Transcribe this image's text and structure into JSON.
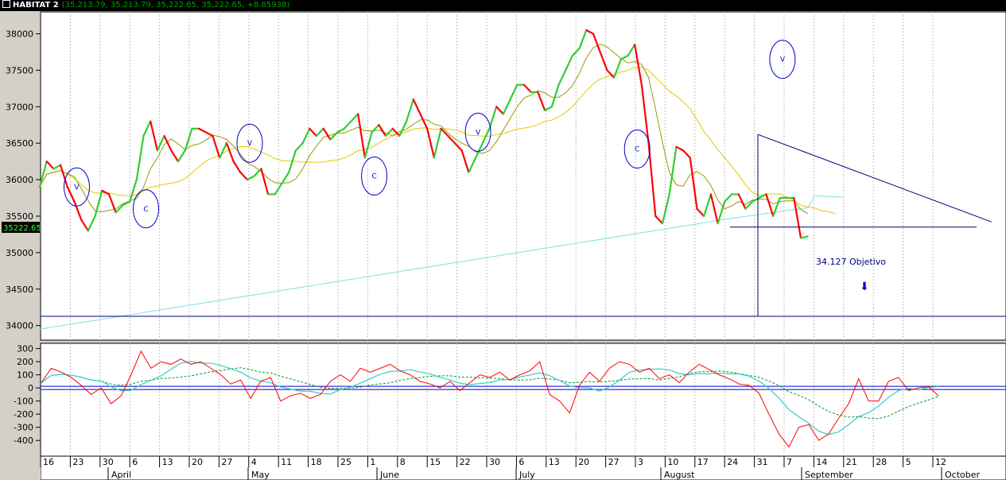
{
  "window": {
    "title": "HABITAT 2",
    "values": "(35,213.79, 35,213.79, 35,222.65, 35,222.65, +8.85938)"
  },
  "price_badge": "35222.65",
  "annotation": {
    "target": "34.127 Objetivo",
    "arrow": "⬇"
  },
  "colors": {
    "up": "#33cc33",
    "down": "#ff0000",
    "ma_short": "#999900",
    "ma_mid": "#e6c800",
    "ma_long": "#80e0e0",
    "trendline": "#000080",
    "osc_line": "#ff0000",
    "osc_signal": "#33cccc",
    "osc_dash": "#009933"
  },
  "axis": {
    "price_ticks": [
      "38000",
      "37500",
      "37000",
      "36500",
      "36000",
      "35500",
      "35000",
      "34500",
      "34000"
    ],
    "osc_ticks": [
      "300",
      "200",
      "100",
      "0",
      "-100",
      "-200",
      "-300",
      "-400"
    ],
    "day_ticks": [
      "16",
      "23",
      "30",
      "6",
      "13",
      "20",
      "27",
      "4",
      "11",
      "18",
      "25",
      "1",
      "8",
      "15",
      "22",
      "30",
      "6",
      "13",
      "20",
      "27",
      "3",
      "10",
      "17",
      "24",
      "31",
      "7",
      "14",
      "21",
      "28",
      "5",
      "12"
    ],
    "month_labels": [
      "April",
      "May",
      "June",
      "July",
      "August",
      "September",
      "October"
    ]
  },
  "chart_data": [
    {
      "type": "line",
      "panel": "price",
      "title": "HABITAT 2",
      "ylim": [
        33800,
        38300
      ],
      "x_index_range": [
        0,
        135
      ],
      "series": [
        {
          "role": "price",
          "values": [
            35900,
            36250,
            36150,
            36200,
            35900,
            35700,
            35450,
            35300,
            35500,
            35850,
            35800,
            35550,
            35650,
            35700,
            36000,
            36600,
            36800,
            36400,
            36600,
            36400,
            36250,
            36400,
            36700,
            36700,
            36650,
            36600,
            36300,
            36500,
            36250,
            36100,
            36000,
            36050,
            36150,
            35800,
            35800,
            35950,
            36100,
            36400,
            36500,
            36700,
            36600,
            36700,
            36550,
            36650,
            36700,
            36800,
            36900,
            36300,
            36650,
            36750,
            36600,
            36700,
            36600,
            36800,
            37100,
            36900,
            36700,
            36300,
            36700,
            36600,
            36500,
            36400,
            36100,
            36300,
            36500,
            36700,
            37000,
            36900,
            37100,
            37300,
            37300,
            37200,
            37200,
            36950,
            37000,
            37300,
            37500,
            37700,
            37800,
            38050,
            38000,
            37750,
            37500,
            37400,
            37650,
            37700,
            37850,
            37300,
            36500,
            35500,
            35400,
            35800,
            36450,
            36400,
            36300,
            35600,
            35500,
            35800,
            35400,
            35700,
            35800,
            35800,
            35600,
            35700,
            35750,
            35800,
            35500,
            35750,
            35750,
            35750,
            35200,
            35223
          ]
        },
        {
          "name": "MA short",
          "role": "ma_short"
        },
        {
          "name": "MA medium",
          "role": "ma_mid"
        },
        {
          "name": "MA long",
          "role": "ma_long"
        }
      ],
      "support_level": 35350,
      "target_level": 34127,
      "trendline": {
        "from": [
          92,
          36620
        ],
        "to": [
          145,
          35420
        ]
      },
      "circles": [
        {
          "x": 5,
          "y": 35900,
          "label": "V"
        },
        {
          "x": 15,
          "y": 35600,
          "label": "C"
        },
        {
          "x": 30,
          "y": 36500,
          "label": "V"
        },
        {
          "x": 48,
          "y": 36050,
          "label": "C"
        },
        {
          "x": 63,
          "y": 36650,
          "label": "V"
        },
        {
          "x": 86,
          "y": 36420,
          "label": "C"
        },
        {
          "x": 107,
          "y": 37650,
          "label": "V"
        }
      ]
    },
    {
      "type": "line",
      "panel": "oscillator",
      "ylim": [
        -520,
        340
      ],
      "series": [
        {
          "role": "osc_line",
          "values": [
            40,
            150,
            120,
            80,
            20,
            -50,
            0,
            -120,
            -60,
            100,
            280,
            150,
            200,
            180,
            220,
            180,
            200,
            150,
            100,
            30,
            60,
            -80,
            50,
            80,
            -100,
            -60,
            -40,
            -80,
            -50,
            50,
            100,
            50,
            150,
            120,
            150,
            180,
            130,
            100,
            50,
            30,
            0,
            50,
            -20,
            40,
            100,
            80,
            120,
            60,
            100,
            130,
            200,
            -50,
            -100,
            -190,
            20,
            120,
            50,
            150,
            200,
            180,
            120,
            150,
            70,
            100,
            40,
            120,
            180,
            140,
            100,
            70,
            30,
            20,
            -40,
            -200,
            -350,
            -450,
            -300,
            -280,
            -400,
            -350,
            -230,
            -120,
            70,
            -100,
            -100,
            50,
            80,
            -20,
            0,
            10,
            -60
          ]
        },
        {
          "role": "osc_signal"
        },
        {
          "role": "osc_dash"
        }
      ]
    }
  ]
}
